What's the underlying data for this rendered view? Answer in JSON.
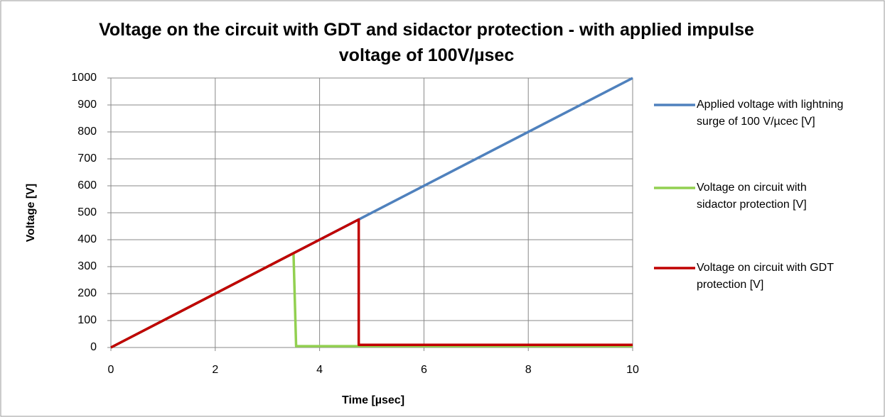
{
  "chart_data": {
    "type": "line",
    "title": "Voltage on the circuit  with GDT and sidactor protection - with applied impulse voltage of 100V/µsec",
    "xlabel": "Time [µsec]",
    "ylabel": "Voltage [V]",
    "xlim": [
      0,
      10
    ],
    "xticks": [
      0,
      2,
      4,
      6,
      8,
      10
    ],
    "ylim": [
      0,
      1000
    ],
    "yticks": [
      0,
      100,
      200,
      300,
      400,
      500,
      600,
      700,
      800,
      900,
      1000
    ],
    "grid": true,
    "legend": "right",
    "series": [
      {
        "name": "Applied voltage with lightning surge of 100 V/µcec [V]",
        "color": "#4f81bd",
        "x": [
          0,
          10
        ],
        "values": [
          0,
          1000
        ]
      },
      {
        "name": "Voltage on circuit with sidactor protection [V]",
        "color": "#92d050",
        "x": [
          0,
          3.5,
          3.55,
          10
        ],
        "values": [
          0,
          350,
          5,
          5
        ]
      },
      {
        "name": "Voltage on circuit with GDT protection [V]",
        "color": "#c00000",
        "x": [
          0,
          4.75,
          4.75,
          10
        ],
        "values": [
          0,
          475,
          10,
          10
        ]
      }
    ]
  }
}
